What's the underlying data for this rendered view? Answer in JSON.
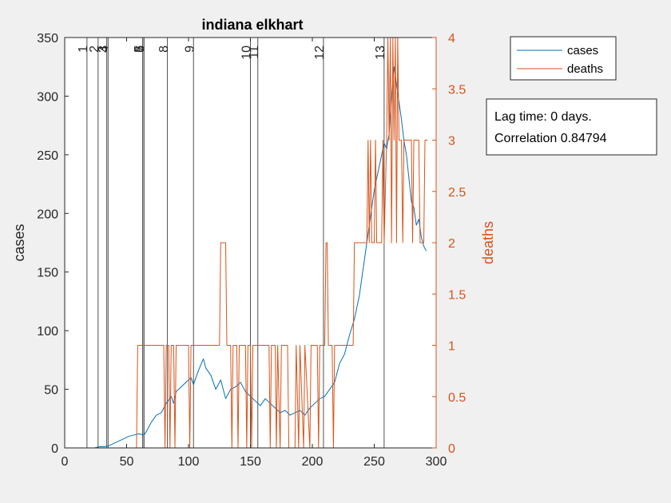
{
  "chart_data": {
    "type": "line",
    "title": "indiana elkhart",
    "xlabel": "",
    "ylabel_left": "cases",
    "ylabel_right": "deaths",
    "xlim": [
      0,
      300
    ],
    "ylim_left": [
      0,
      350
    ],
    "ylim_right": [
      0,
      4
    ],
    "x_ticks": [
      "0",
      "50",
      "100",
      "150",
      "200",
      "250",
      "300"
    ],
    "y_left_ticks": [
      "0",
      "50",
      "100",
      "150",
      "200",
      "250",
      "300",
      "350"
    ],
    "y_right_ticks": [
      "0",
      "0.5",
      "1",
      "1.5",
      "2",
      "2.5",
      "3",
      "3.5",
      "4"
    ],
    "legend_position": "top-right",
    "colors": {
      "cases": "#0072BD",
      "deaths": "#D95319"
    },
    "event_lines": [
      {
        "label": "1",
        "x": 18
      },
      {
        "label": "2",
        "x": 27
      },
      {
        "label": "3",
        "x": 34
      },
      {
        "label": "4",
        "x": 35
      },
      {
        "label": "5",
        "x": 63
      },
      {
        "label": "6",
        "x": 64
      },
      {
        "label": "7",
        "x": 64
      },
      {
        "label": "8",
        "x": 83
      },
      {
        "label": "9",
        "x": 104
      },
      {
        "label": "10",
        "x": 150
      },
      {
        "label": "11",
        "x": 156
      },
      {
        "label": "12",
        "x": 209
      },
      {
        "label": "13",
        "x": 258
      }
    ],
    "series": [
      {
        "name": "cases",
        "axis": "left",
        "points": [
          [
            24,
            0
          ],
          [
            28,
            1
          ],
          [
            32,
            1
          ],
          [
            36,
            2
          ],
          [
            40,
            4
          ],
          [
            44,
            6
          ],
          [
            48,
            8
          ],
          [
            52,
            10
          ],
          [
            56,
            11
          ],
          [
            60,
            12
          ],
          [
            64,
            11
          ],
          [
            66,
            14
          ],
          [
            70,
            22
          ],
          [
            74,
            28
          ],
          [
            78,
            30
          ],
          [
            82,
            38
          ],
          [
            86,
            44
          ],
          [
            88,
            38
          ],
          [
            90,
            48
          ],
          [
            94,
            52
          ],
          [
            98,
            56
          ],
          [
            102,
            60
          ],
          [
            104,
            54
          ],
          [
            108,
            66
          ],
          [
            112,
            76
          ],
          [
            114,
            68
          ],
          [
            118,
            62
          ],
          [
            122,
            50
          ],
          [
            126,
            58
          ],
          [
            130,
            42
          ],
          [
            134,
            50
          ],
          [
            138,
            52
          ],
          [
            142,
            56
          ],
          [
            146,
            48
          ],
          [
            150,
            44
          ],
          [
            154,
            40
          ],
          [
            158,
            36
          ],
          [
            162,
            42
          ],
          [
            166,
            38
          ],
          [
            170,
            34
          ],
          [
            174,
            30
          ],
          [
            178,
            32
          ],
          [
            182,
            28
          ],
          [
            186,
            30
          ],
          [
            190,
            32
          ],
          [
            194,
            28
          ],
          [
            198,
            34
          ],
          [
            202,
            38
          ],
          [
            206,
            42
          ],
          [
            210,
            44
          ],
          [
            214,
            50
          ],
          [
            218,
            56
          ],
          [
            222,
            72
          ],
          [
            226,
            80
          ],
          [
            230,
            96
          ],
          [
            234,
            110
          ],
          [
            238,
            130
          ],
          [
            242,
            160
          ],
          [
            246,
            190
          ],
          [
            250,
            220
          ],
          [
            254,
            240
          ],
          [
            258,
            260
          ],
          [
            260,
            255
          ],
          [
            262,
            268
          ],
          [
            264,
            300
          ],
          [
            266,
            325
          ],
          [
            268,
            310
          ],
          [
            270,
            295
          ],
          [
            272,
            280
          ],
          [
            274,
            262
          ],
          [
            276,
            250
          ],
          [
            278,
            230
          ],
          [
            280,
            210
          ],
          [
            282,
            205
          ],
          [
            284,
            190
          ],
          [
            286,
            195
          ],
          [
            288,
            180
          ],
          [
            290,
            172
          ],
          [
            292,
            168
          ]
        ]
      },
      {
        "name": "deaths",
        "axis": "right",
        "points": [
          [
            0,
            0
          ],
          [
            58,
            0
          ],
          [
            59,
            1
          ],
          [
            60,
            1
          ],
          [
            80,
            1
          ],
          [
            81,
            0
          ],
          [
            82,
            1
          ],
          [
            84,
            1
          ],
          [
            85,
            0
          ],
          [
            86,
            1
          ],
          [
            88,
            1
          ],
          [
            89,
            0
          ],
          [
            90,
            1
          ],
          [
            100,
            1
          ],
          [
            101,
            0
          ],
          [
            102,
            1
          ],
          [
            125,
            1
          ],
          [
            126,
            2
          ],
          [
            130,
            2
          ],
          [
            131,
            1
          ],
          [
            134,
            1
          ],
          [
            135,
            0
          ],
          [
            136,
            1
          ],
          [
            139,
            1
          ],
          [
            140,
            0
          ],
          [
            141,
            1
          ],
          [
            146,
            1
          ],
          [
            147,
            0
          ],
          [
            148,
            1
          ],
          [
            150,
            1
          ],
          [
            151,
            0
          ],
          [
            152,
            1
          ],
          [
            165,
            1
          ],
          [
            166,
            0
          ],
          [
            167,
            1
          ],
          [
            170,
            1
          ],
          [
            171,
            0
          ],
          [
            172,
            1
          ],
          [
            174,
            0
          ],
          [
            175,
            1
          ],
          [
            180,
            1
          ],
          [
            181,
            0
          ],
          [
            186,
            0
          ],
          [
            187,
            1
          ],
          [
            189,
            0
          ],
          [
            190,
            1
          ],
          [
            193,
            0
          ],
          [
            194,
            1
          ],
          [
            198,
            0
          ],
          [
            199,
            1
          ],
          [
            204,
            1
          ],
          [
            205,
            0
          ],
          [
            206,
            1
          ],
          [
            210,
            1
          ],
          [
            211,
            2
          ],
          [
            212,
            2
          ],
          [
            213,
            1
          ],
          [
            216,
            1
          ],
          [
            217,
            0
          ],
          [
            218,
            1
          ],
          [
            233,
            1
          ],
          [
            234,
            2
          ],
          [
            244,
            2
          ],
          [
            245,
            3
          ],
          [
            246,
            2
          ],
          [
            247,
            3
          ],
          [
            248,
            2
          ],
          [
            250,
            2
          ],
          [
            251,
            3
          ],
          [
            252,
            2
          ],
          [
            256,
            2
          ],
          [
            257,
            3
          ],
          [
            258,
            2
          ],
          [
            260,
            3
          ],
          [
            261,
            4
          ],
          [
            262,
            3
          ],
          [
            263,
            4
          ],
          [
            264,
            2
          ],
          [
            265,
            4
          ],
          [
            266,
            3
          ],
          [
            267,
            4
          ],
          [
            268,
            2
          ],
          [
            269,
            4
          ],
          [
            270,
            3
          ],
          [
            272,
            3
          ],
          [
            273,
            2
          ],
          [
            274,
            3
          ],
          [
            280,
            3
          ],
          [
            281,
            2
          ],
          [
            282,
            3
          ],
          [
            286,
            3
          ],
          [
            287,
            2
          ],
          [
            290,
            2
          ],
          [
            291,
            3
          ],
          [
            293,
            3
          ]
        ]
      }
    ]
  },
  "annotation": {
    "line1": "Lag time: 0 days.",
    "line2": "Correlation 0.84794"
  }
}
